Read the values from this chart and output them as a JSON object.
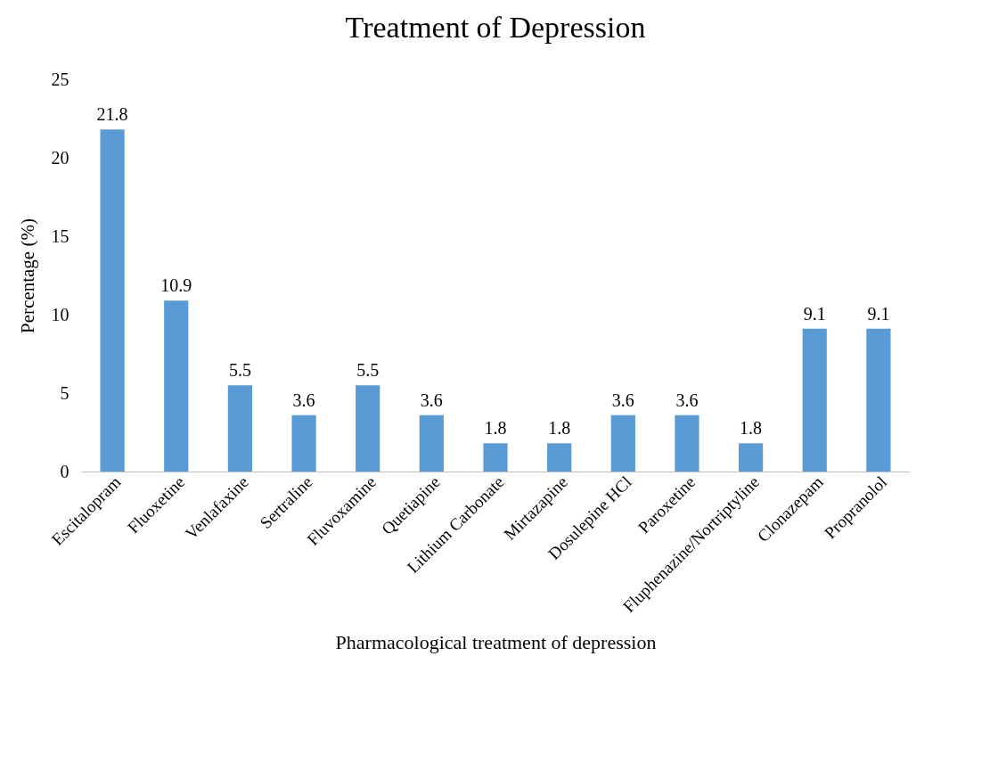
{
  "chart_data": {
    "type": "bar",
    "title": "Treatment of Depression",
    "xlabel": "Pharmacological treatment of depression",
    "ylabel": "Percentage (%)",
    "categories": [
      "Escitalopram",
      "Fluoxetine",
      "Venlafaxine",
      "Sertraline",
      "Fluvoxamine",
      "Quetiapine",
      "Lithium Carbonate",
      "Mirtazapine",
      "Dosulepine HCl",
      "Paroxetine",
      "Fluphenazine/Nortriptyline",
      "Clonazepam",
      "Propranolol"
    ],
    "values": [
      21.8,
      10.9,
      5.5,
      3.6,
      5.5,
      3.6,
      1.8,
      1.8,
      3.6,
      3.6,
      1.8,
      9.1,
      9.1
    ],
    "color": "#5b9bd5",
    "ylim": [
      0,
      25
    ],
    "yticks": [
      0,
      5,
      10,
      15,
      20,
      25
    ],
    "grid": false,
    "data_labels": true
  }
}
